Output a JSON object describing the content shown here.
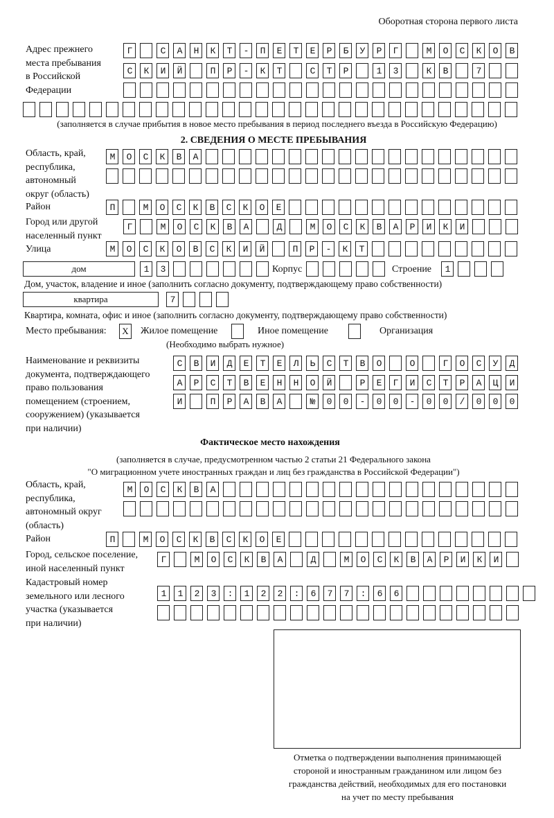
{
  "header": "Оборотная сторона первого листа",
  "prev_address": {
    "label": "Адрес прежнего\nместа пребывания\nв Российской\nФедерации",
    "rows": [
      "Г СанкТ-ПЕТЕРБУРГ МОСКОВ",
      "СКИЙ ПР-КТ СТР 13 КВ 7  ",
      "                        ",
      "                              "
    ],
    "note": "(заполняется в случае прибытия в новое место пребывания в период последнего въезда в Российскую Федерацию)"
  },
  "section2": {
    "title": "2. СВЕДЕНИЯ О МЕСТЕ ПРЕБЫВАНИЯ",
    "region_label": "Область, край,\nреспублика,\nавтономный\nокруг (область)",
    "region_rows": [
      "МОСКВА                   ",
      "                         "
    ],
    "district_label": "Район",
    "district_row": "П МОСКВСКОЕ              ",
    "city_label": "Город или другой\nнаселенный пункт",
    "city_row": "Г МОСКВА Д МОСКВАРИКИ   ",
    "street_label": "Улица",
    "street_row": "МОСКОВСКИЙ ПР-КТ         ",
    "house_type": "дом",
    "house_row": "13      ",
    "korpus_label": "Корпус",
    "korpus_row": "     ",
    "building_label": "Строение",
    "building_row": "1   ",
    "house_note": "Дом, участок, владение и иное (заполнить согласно документу, подтверждающему право собственности)",
    "apt_type": "квартира",
    "apt_row": "7   ",
    "apt_note": "Квартира, комната, офис и иное (заполнить согласно документу, подтверждающему право собственности)",
    "stay_label": "Место пребывания:",
    "stay_options": [
      {
        "label": "Жилое помещение",
        "mark": "X"
      },
      {
        "label": "Иное помещение",
        "mark": ""
      },
      {
        "label": "Организация",
        "mark": ""
      }
    ],
    "stay_note": "(Необходимо выбрать нужное)",
    "doc_label": "Наименование и реквизиты\nдокумента, подтверждающего\nправо пользования\nпомещением (строением,\nсооружением) (указывается\nпри наличии)",
    "doc_rows": [
      "СВИДЕТЕЛЬСТВО О ГОСУД",
      "АРСТВЕННОЙ РЕГИСТРАЦИ",
      "И ПРАВА №00-00-00/000"
    ]
  },
  "actual": {
    "title": "Фактическое место нахождения",
    "note1": "(заполняется в случае, предусмотренном частью 2 статьи 21 Федерального закона",
    "note2": "\"О миграционном учете иностранных граждан и лиц без гражданства в Российской Федерации\")",
    "region_label": "Область, край,\nреспублика,\nавтономный округ\n(область)",
    "region_rows": [
      "МОСКВА                  ",
      "                        "
    ],
    "district_label": "Район",
    "district_row": "П МОСКВСКОЕ              ",
    "city_label": "Город, сельское поселение,\nиной населенный пункт",
    "city_row": "Г МОСКВА Д МОСКВАРИКИ ",
    "cadastre_label": "Кадастровый номер\nземельного или лесного\nучастка (указывается\nпри наличии)",
    "cadastre_rows": [
      "1123:122:677:66        ",
      "                      "
    ]
  },
  "confirmation_caption": "Отметка о подтверждении выполнения принимающей\nстороной и иностранным гражданином или лицом без\nгражданства действий, необходимых для его постановки\nна учет по месту пребывания"
}
